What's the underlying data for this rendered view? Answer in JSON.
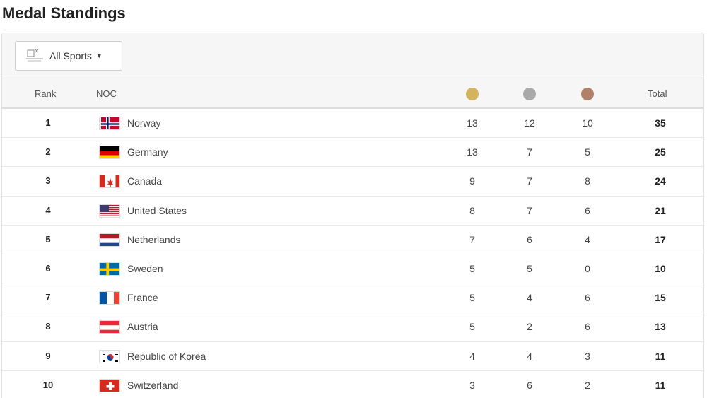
{
  "page": {
    "title": "Medal Standings"
  },
  "filter": {
    "label": "All Sports",
    "icon": "sports-pictogram-icon"
  },
  "table": {
    "headers": {
      "rank": "Rank",
      "noc": "NOC",
      "total": "Total"
    },
    "medal_colors": {
      "gold": "#d4b35f",
      "silver": "#a9a9a9",
      "bronze": "#b08068"
    },
    "rows": [
      {
        "rank": "1",
        "country": "Norway",
        "flag": "norway-flag-icon",
        "gold": "13",
        "silver": "12",
        "bronze": "10",
        "total": "35"
      },
      {
        "rank": "2",
        "country": "Germany",
        "flag": "germany-flag-icon",
        "gold": "13",
        "silver": "7",
        "bronze": "5",
        "total": "25"
      },
      {
        "rank": "3",
        "country": "Canada",
        "flag": "canada-flag-icon",
        "gold": "9",
        "silver": "7",
        "bronze": "8",
        "total": "24"
      },
      {
        "rank": "4",
        "country": "United States",
        "flag": "usa-flag-icon",
        "gold": "8",
        "silver": "7",
        "bronze": "6",
        "total": "21"
      },
      {
        "rank": "5",
        "country": "Netherlands",
        "flag": "netherlands-flag-icon",
        "gold": "7",
        "silver": "6",
        "bronze": "4",
        "total": "17"
      },
      {
        "rank": "6",
        "country": "Sweden",
        "flag": "sweden-flag-icon",
        "gold": "5",
        "silver": "5",
        "bronze": "0",
        "total": "10"
      },
      {
        "rank": "7",
        "country": "France",
        "flag": "france-flag-icon",
        "gold": "5",
        "silver": "4",
        "bronze": "6",
        "total": "15"
      },
      {
        "rank": "8",
        "country": "Austria",
        "flag": "austria-flag-icon",
        "gold": "5",
        "silver": "2",
        "bronze": "6",
        "total": "13"
      },
      {
        "rank": "9",
        "country": "Republic of Korea",
        "flag": "korea-flag-icon",
        "gold": "4",
        "silver": "4",
        "bronze": "3",
        "total": "11"
      },
      {
        "rank": "10",
        "country": "Switzerland",
        "flag": "switzerland-flag-icon",
        "gold": "3",
        "silver": "6",
        "bronze": "2",
        "total": "11"
      }
    ]
  }
}
